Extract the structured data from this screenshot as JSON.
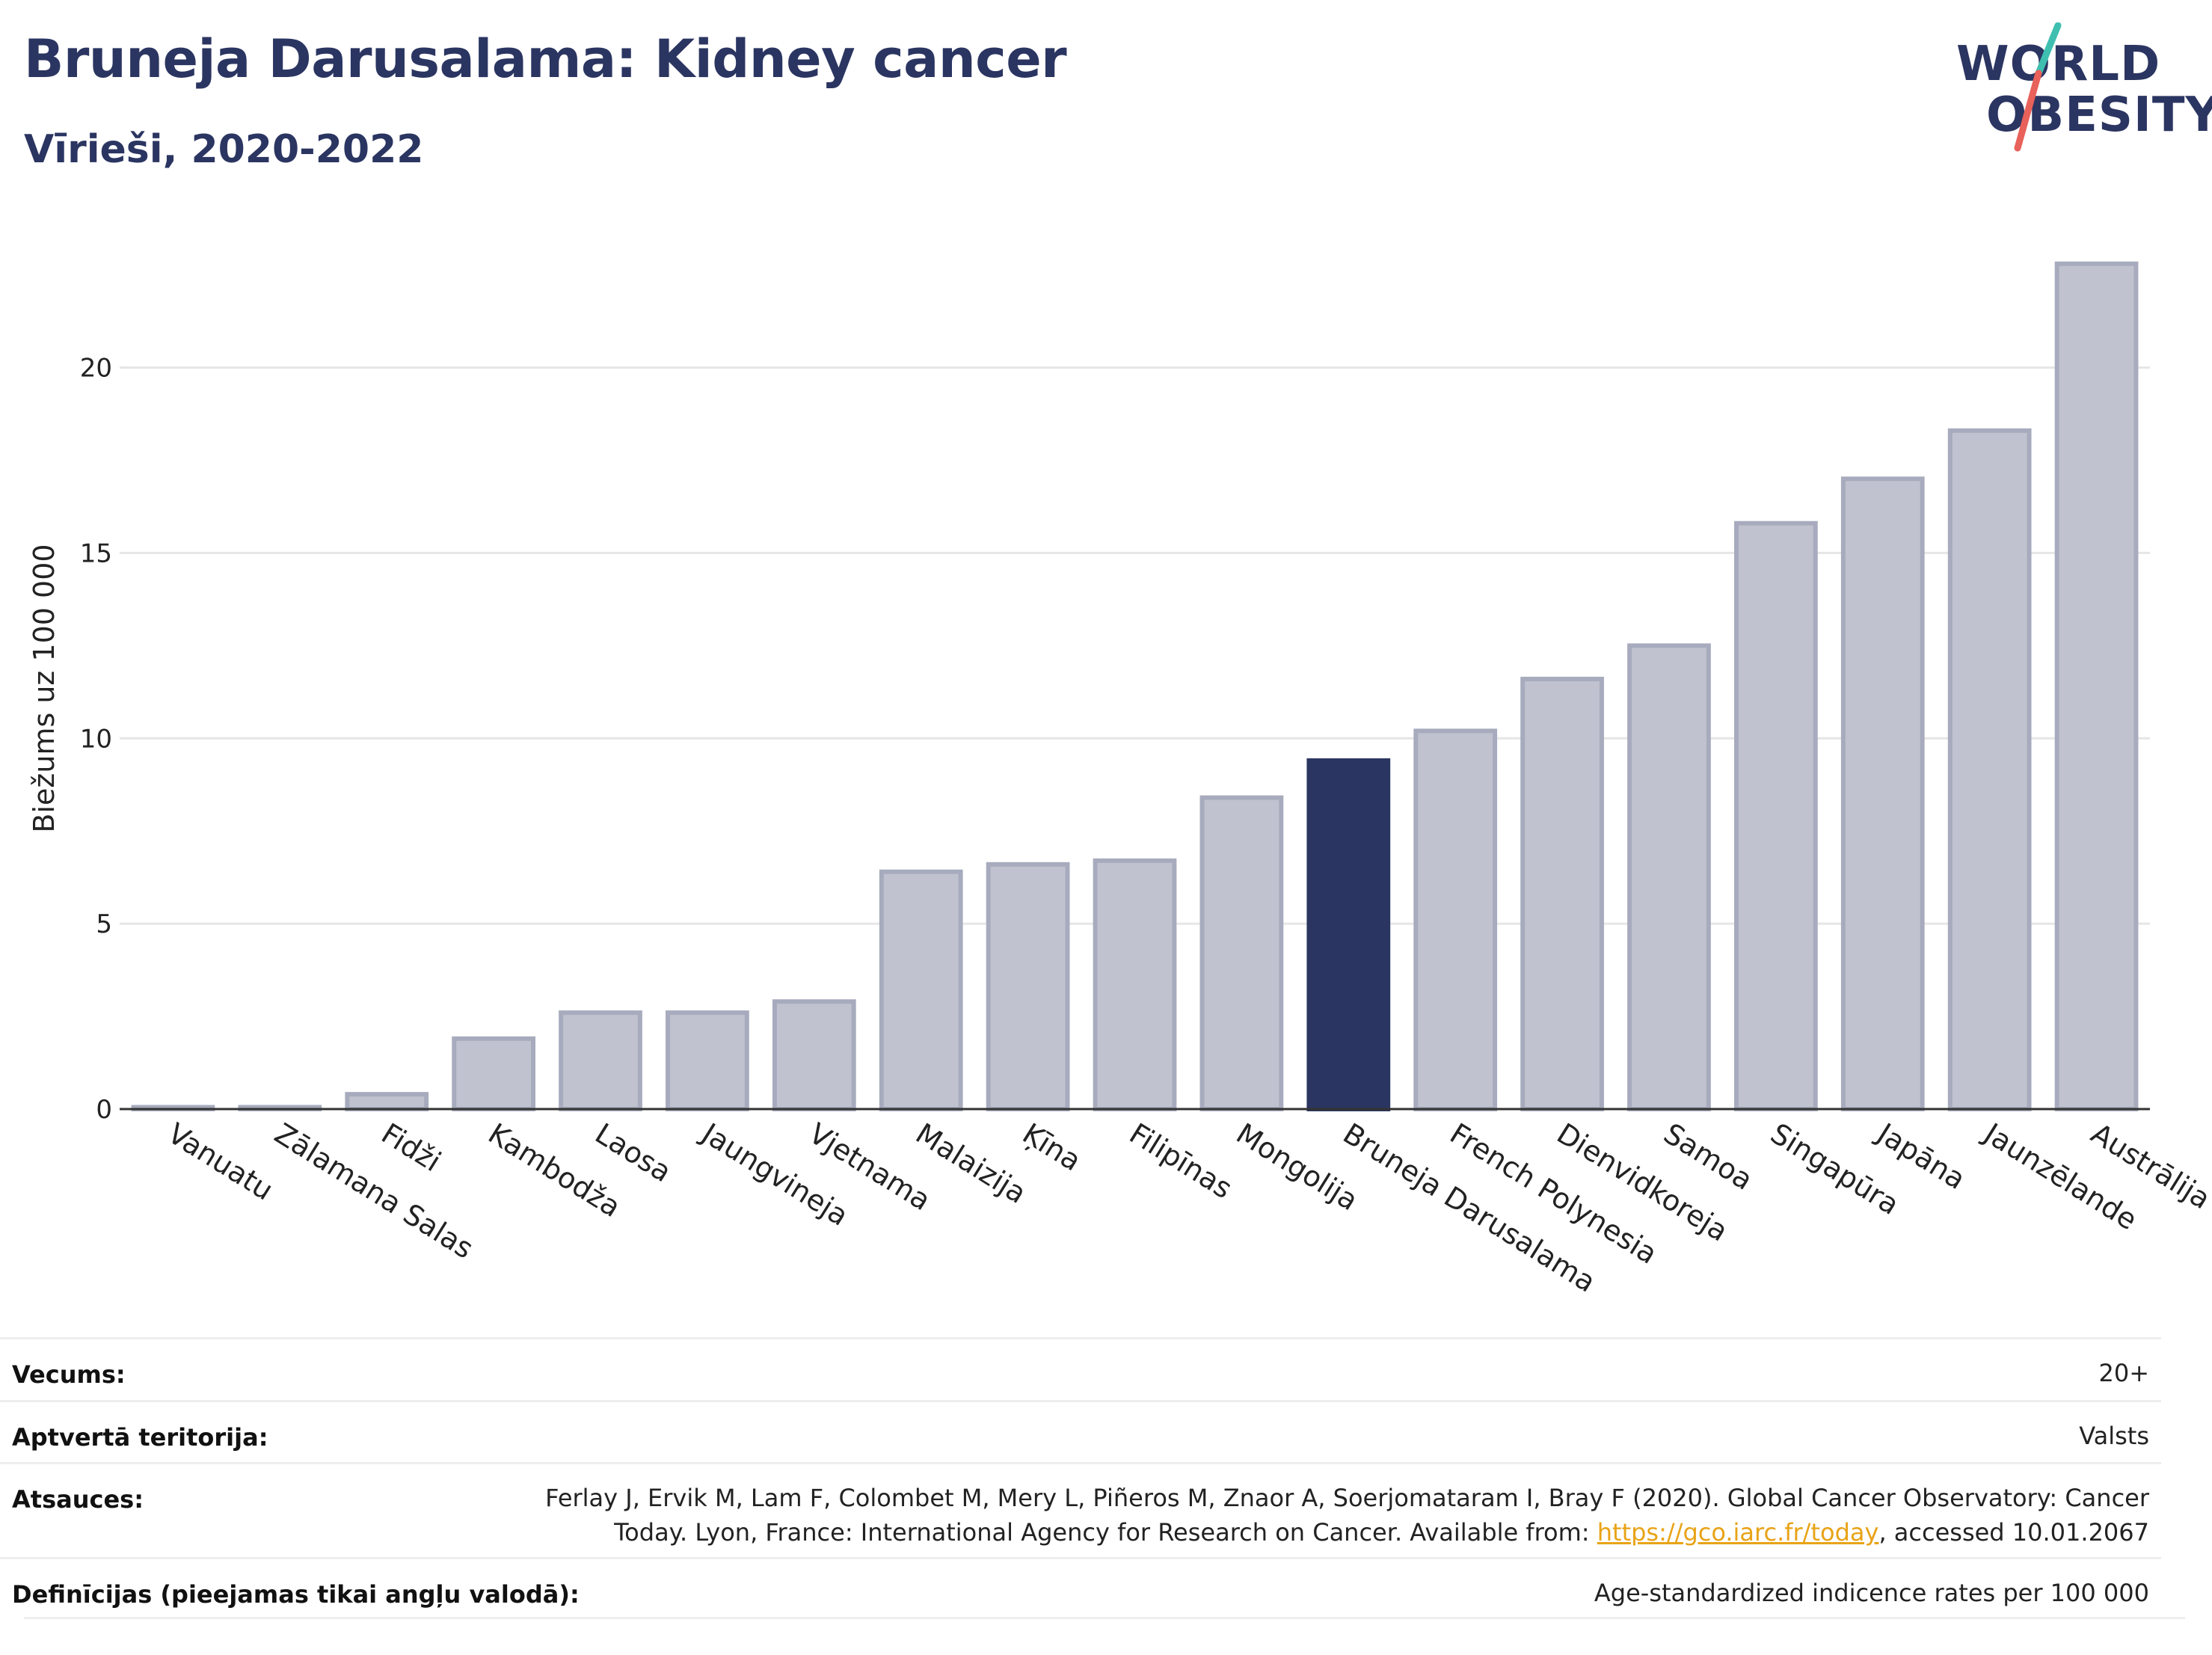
{
  "header": {
    "title": "Bruneja Darusalama: Kidney cancer",
    "subtitle": "Vīrieši, 2020-2022"
  },
  "logo": {
    "line1": "WORLD",
    "line2": "OBESITY",
    "accent_teal": "#3fbfb0",
    "accent_red": "#e8615a"
  },
  "colors": {
    "bar_default": "#c0c3cf",
    "bar_border": "#a7abbd",
    "bar_highlight": "#2b3561",
    "grid": "#e6e6e6",
    "text_dark": "#2b3561"
  },
  "chart_data": {
    "type": "bar",
    "ylabel": "Biežums uz 100 000",
    "ylim": [
      0,
      23.5
    ],
    "yticks": [
      0,
      5,
      10,
      15,
      20
    ],
    "grid": true,
    "highlight": "Bruneja Darusalama",
    "categories": [
      "Vanuatu",
      "Zālamana Salas",
      "Fidži",
      "Kambodža",
      "Laosa",
      "Jaungvineja",
      "Vjetnama",
      "Malaizija",
      "Ķīna",
      "Filipīnas",
      "Mongolija",
      "Bruneja Darusalama",
      "French Polynesia",
      "Dienvidkoreja",
      "Samoa",
      "Singapūra",
      "Japāna",
      "Jaunzēlande",
      "Austrālija"
    ],
    "values": [
      0.05,
      0.05,
      0.4,
      1.9,
      2.6,
      2.6,
      2.9,
      6.4,
      6.6,
      6.7,
      8.4,
      9.4,
      10.2,
      11.6,
      12.5,
      15.8,
      17.0,
      18.3,
      22.8
    ]
  },
  "meta": {
    "rows": [
      {
        "label": "Vecums:",
        "value": "20+"
      },
      {
        "label": "Aptvertā teritorija:",
        "value": "Valsts"
      },
      {
        "label": "Atsauces:",
        "value_line1": "Ferlay J, Ervik M, Lam F, Colombet M, Mery L, Piñeros M, Znaor A, Soerjomataram I, Bray F (2020). Global Cancer Observatory: Cancer",
        "value_line2_pre": "Today. Lyon, France: International Agency for Research on Cancer. Available from: ",
        "value_link": "https://gco.iarc.fr/today",
        "value_line2_post": ", accessed 10.01.2067"
      },
      {
        "label": "Definīcijas (pieejamas tikai angļu valodā):",
        "value": "Age-standardized indicence rates per 100 000"
      }
    ]
  }
}
